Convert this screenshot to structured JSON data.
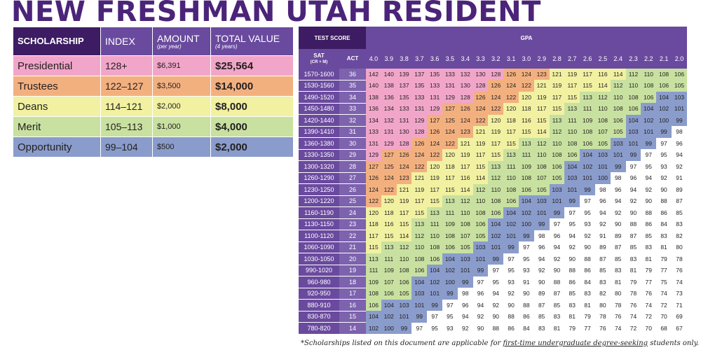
{
  "title": "NEW FRESHMAN UTAH RESIDENT",
  "scholarships": {
    "headers": {
      "scholarship": "SCHOLARSHIP",
      "index": "INDEX",
      "amount": "AMOUNT",
      "amount_note": "(per year)",
      "total": "TOTAL VALUE",
      "total_note": "(4 years)"
    },
    "rows": [
      {
        "name": "Presidential",
        "index": "128+",
        "amount": "$6,391",
        "total": "$25,564",
        "color": "#f1a6c9"
      },
      {
        "name": "Trustees",
        "index": "122–127",
        "amount": "$3,500",
        "total": "$14,000",
        "color": "#f3b07f"
      },
      {
        "name": "Deans",
        "index": "114–121",
        "amount": "$2,000",
        "total": "$8,000",
        "color": "#f1f1a1"
      },
      {
        "name": "Merit",
        "index": "105–113",
        "amount": "$1,000",
        "total": "$4,000",
        "color": "#c8e1a0"
      },
      {
        "name": "Opportunity",
        "index": "99–104",
        "amount": "$500",
        "total": "$2,000",
        "color": "#8a9ccb"
      }
    ]
  },
  "grid": {
    "test_score_label": "TEST SCORE",
    "gpa_label": "GPA",
    "sat_label": "SAT",
    "sat_sub": "(CR + M)",
    "act_label": "ACT",
    "gpa_values": [
      "4.0",
      "3.9",
      "3.8",
      "3.7",
      "3.6",
      "3.5",
      "3.4",
      "3.3",
      "3.2",
      "3.1",
      "3.0",
      "2.9",
      "2.8",
      "2.7",
      "2.6",
      "2.5",
      "2.4",
      "2.3",
      "2.2",
      "2.1",
      "2.0"
    ],
    "rows": [
      {
        "sat": "1570-1600",
        "act": "36",
        "v": [
          142,
          140,
          139,
          137,
          135,
          133,
          132,
          130,
          128,
          126,
          124,
          123,
          121,
          119,
          117,
          116,
          114,
          112,
          110,
          108,
          106
        ]
      },
      {
        "sat": "1530-1560",
        "act": "35",
        "v": [
          140,
          138,
          137,
          135,
          133,
          131,
          130,
          128,
          126,
          124,
          122,
          121,
          119,
          117,
          115,
          114,
          112,
          110,
          108,
          106,
          105
        ]
      },
      {
        "sat": "1490-1520",
        "act": "34",
        "v": [
          138,
          136,
          135,
          133,
          131,
          129,
          128,
          126,
          124,
          122,
          120,
          119,
          117,
          115,
          113,
          112,
          110,
          108,
          106,
          104,
          103
        ]
      },
      {
        "sat": "1450-1480",
        "act": "33",
        "v": [
          136,
          134,
          133,
          131,
          129,
          127,
          126,
          124,
          122,
          120,
          118,
          117,
          115,
          113,
          111,
          110,
          108,
          106,
          104,
          102,
          101
        ]
      },
      {
        "sat": "1420-1440",
        "act": "32",
        "v": [
          134,
          132,
          131,
          129,
          127,
          125,
          124,
          122,
          120,
          118,
          116,
          115,
          113,
          111,
          109,
          108,
          106,
          104,
          102,
          100,
          99
        ]
      },
      {
        "sat": "1390-1410",
        "act": "31",
        "v": [
          133,
          131,
          130,
          128,
          126,
          124,
          123,
          121,
          119,
          117,
          115,
          114,
          112,
          110,
          108,
          107,
          105,
          103,
          101,
          99,
          98
        ]
      },
      {
        "sat": "1360-1380",
        "act": "30",
        "v": [
          131,
          129,
          128,
          126,
          124,
          122,
          121,
          119,
          117,
          115,
          113,
          112,
          110,
          108,
          106,
          105,
          103,
          101,
          99,
          97,
          96
        ]
      },
      {
        "sat": "1330-1350",
        "act": "29",
        "v": [
          129,
          127,
          126,
          124,
          122,
          120,
          119,
          117,
          115,
          113,
          111,
          110,
          108,
          106,
          104,
          103,
          101,
          99,
          97,
          95,
          94
        ]
      },
      {
        "sat": "1300-1320",
        "act": "28",
        "v": [
          127,
          125,
          124,
          122,
          120,
          118,
          117,
          115,
          113,
          111,
          109,
          108,
          106,
          104,
          102,
          101,
          99,
          97,
          95,
          93,
          92
        ]
      },
      {
        "sat": "1260-1290",
        "act": "27",
        "v": [
          126,
          124,
          123,
          121,
          119,
          117,
          116,
          114,
          112,
          110,
          108,
          107,
          105,
          103,
          101,
          100,
          98,
          96,
          94,
          92,
          91
        ]
      },
      {
        "sat": "1230-1250",
        "act": "26",
        "v": [
          124,
          122,
          121,
          119,
          117,
          115,
          114,
          112,
          110,
          108,
          106,
          105,
          103,
          101,
          99,
          98,
          96,
          94,
          92,
          90,
          89
        ]
      },
      {
        "sat": "1200-1220",
        "act": "25",
        "v": [
          122,
          120,
          119,
          117,
          115,
          113,
          112,
          110,
          108,
          106,
          104,
          103,
          101,
          99,
          97,
          96,
          94,
          92,
          90,
          88,
          87
        ]
      },
      {
        "sat": "1160-1190",
        "act": "24",
        "v": [
          120,
          118,
          117,
          115,
          113,
          111,
          110,
          108,
          106,
          104,
          102,
          101,
          99,
          97,
          95,
          94,
          92,
          90,
          88,
          86,
          85
        ]
      },
      {
        "sat": "1130-1150",
        "act": "23",
        "v": [
          118,
          116,
          115,
          113,
          111,
          109,
          108,
          106,
          104,
          102,
          100,
          99,
          97,
          95,
          93,
          92,
          90,
          88,
          86,
          84,
          83
        ]
      },
      {
        "sat": "1100-1120",
        "act": "22",
        "v": [
          117,
          115,
          114,
          112,
          110,
          108,
          107,
          105,
          102,
          101,
          99,
          98,
          96,
          94,
          92,
          91,
          89,
          87,
          85,
          83,
          82
        ]
      },
      {
        "sat": "1060-1090",
        "act": "21",
        "v": [
          115,
          113,
          112,
          110,
          108,
          106,
          105,
          103,
          101,
          99,
          97,
          96,
          94,
          92,
          90,
          89,
          87,
          85,
          83,
          81,
          80
        ]
      },
      {
        "sat": "1030-1050",
        "act": "20",
        "v": [
          113,
          111,
          110,
          108,
          106,
          104,
          103,
          101,
          99,
          97,
          95,
          94,
          92,
          90,
          88,
          87,
          85,
          83,
          81,
          79,
          78
        ]
      },
      {
        "sat": "990-1020",
        "act": "19",
        "v": [
          111,
          109,
          108,
          106,
          104,
          102,
          101,
          99,
          97,
          95,
          93,
          92,
          90,
          88,
          86,
          85,
          83,
          81,
          79,
          77,
          76
        ]
      },
      {
        "sat": "960-980",
        "act": "18",
        "v": [
          109,
          107,
          106,
          104,
          102,
          100,
          99,
          97,
          95,
          93,
          91,
          90,
          88,
          86,
          84,
          83,
          81,
          79,
          77,
          75,
          74
        ]
      },
      {
        "sat": "920-950",
        "act": "17",
        "v": [
          108,
          106,
          105,
          103,
          101,
          99,
          98,
          96,
          94,
          92,
          90,
          89,
          87,
          85,
          83,
          82,
          80,
          78,
          76,
          74,
          73
        ]
      },
      {
        "sat": "880-910",
        "act": "16",
        "v": [
          106,
          104,
          103,
          101,
          99,
          97,
          96,
          94,
          92,
          90,
          88,
          87,
          85,
          83,
          81,
          80,
          78,
          76,
          74,
          72,
          71
        ]
      },
      {
        "sat": "830-870",
        "act": "15",
        "v": [
          104,
          102,
          101,
          99,
          97,
          95,
          94,
          92,
          90,
          88,
          86,
          85,
          83,
          81,
          79,
          78,
          76,
          74,
          72,
          70,
          69
        ]
      },
      {
        "sat": "780-820",
        "act": "14",
        "v": [
          102,
          100,
          99,
          97,
          95,
          93,
          92,
          90,
          88,
          86,
          84,
          83,
          81,
          79,
          77,
          76,
          74,
          72,
          70,
          68,
          67
        ]
      }
    ]
  },
  "footnote": {
    "before": "*Scholarships listed on this document are applicable for ",
    "underlined": "first-time undergraduate degree-seeking",
    "after": " students only."
  },
  "colors": {
    "presidential": "#f1a6c9",
    "trustees": "#f3b07f",
    "deans": "#f1f1a1",
    "merit": "#c8e1a0",
    "opportunity": "#8a9ccb",
    "none": "#ffffff",
    "header_dark": "#3d1c63",
    "header_purple": "#6a4a9e"
  }
}
